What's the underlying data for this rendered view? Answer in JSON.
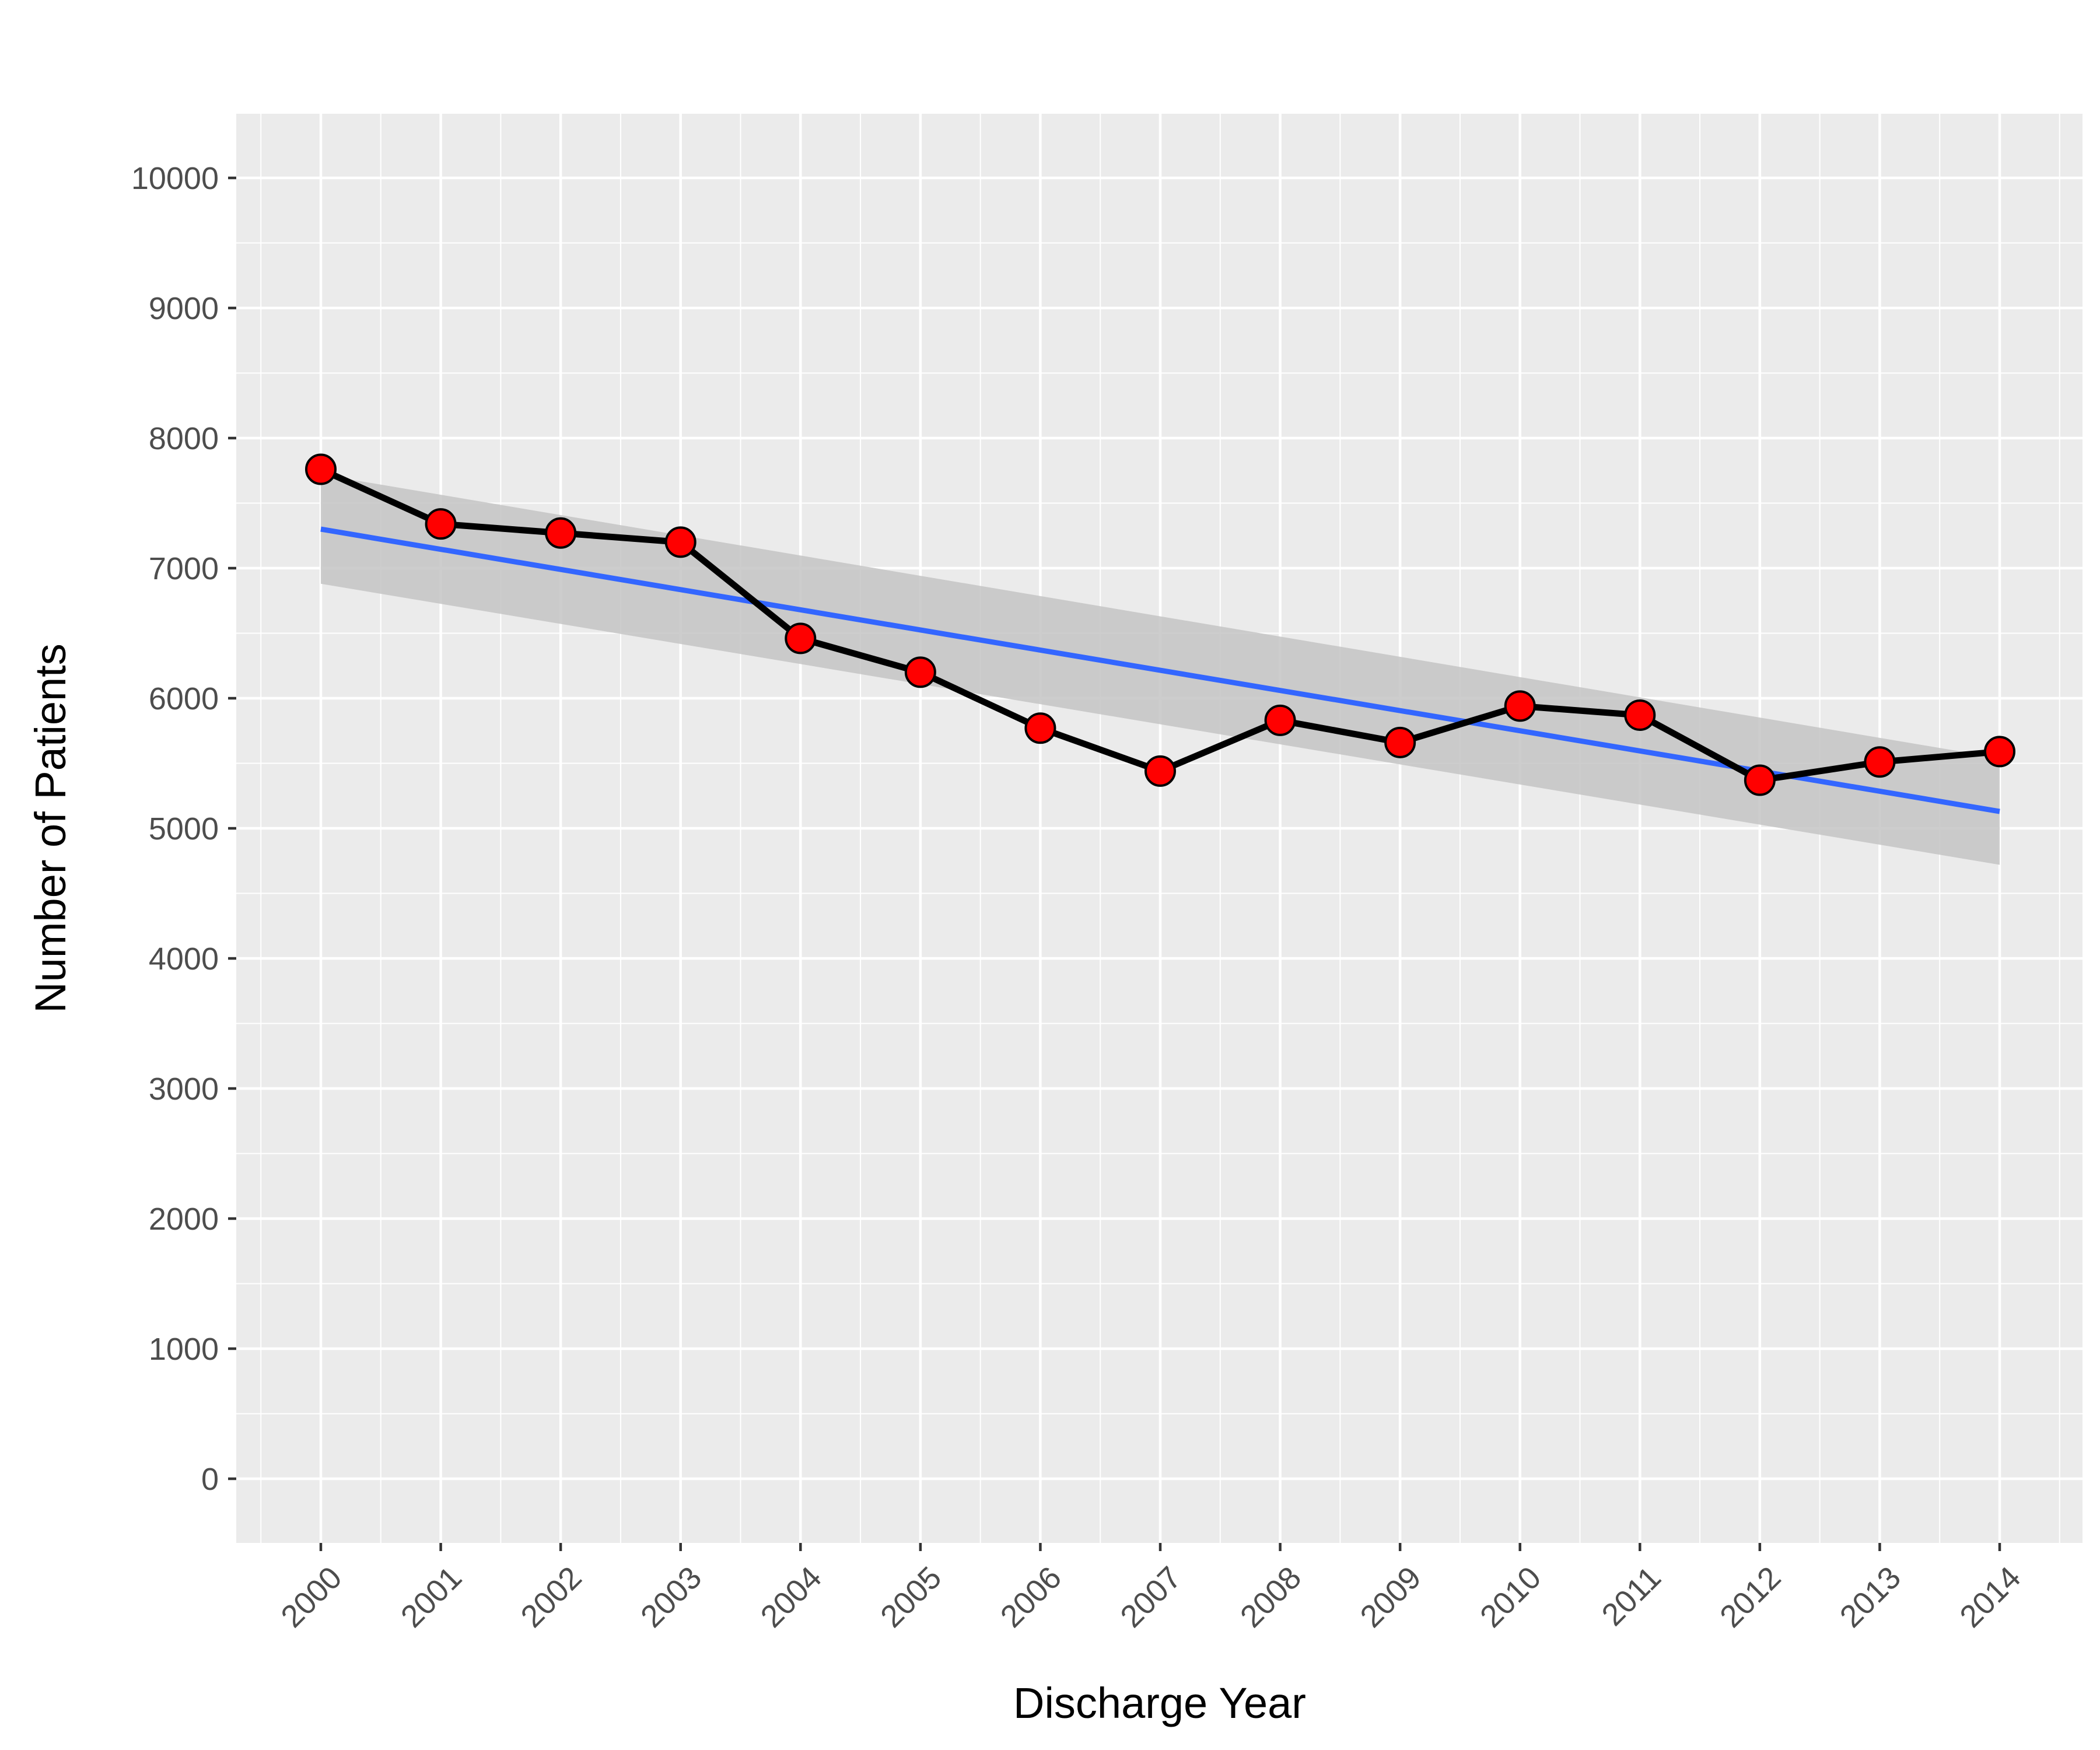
{
  "chart_data": {
    "type": "line",
    "title": "",
    "xlabel": "Discharge Year",
    "ylabel": "Number of Patients",
    "x": [
      "2000",
      "2001",
      "2002",
      "2003",
      "2004",
      "2005",
      "2006",
      "2007",
      "2008",
      "2009",
      "2010",
      "2011",
      "2012",
      "2013",
      "2014"
    ],
    "y_ticks": [
      "0",
      "1000",
      "2000",
      "3000",
      "4000",
      "5000",
      "6000",
      "7000",
      "8000",
      "9000",
      "10000"
    ],
    "ylim": [
      -500,
      10500
    ],
    "grid": true,
    "series": [
      {
        "values": [
          7760,
          7340,
          7270,
          7200,
          6460,
          6200,
          5770,
          5440,
          5830,
          5660,
          5940,
          5870,
          5370,
          5510,
          5590
        ],
        "line_color": "#000000",
        "marker_fill": "#ff0000"
      }
    ],
    "trend": {
      "type": "linear fit",
      "start": 7300,
      "end": 5130,
      "ci_lower_start": 6880,
      "ci_upper_start": 7720,
      "ci_lower_end": 4720,
      "ci_upper_end": 5540,
      "color": "#3366ff",
      "band_color": "#c4c4c4"
    },
    "panel_color": "#ebebeb"
  }
}
